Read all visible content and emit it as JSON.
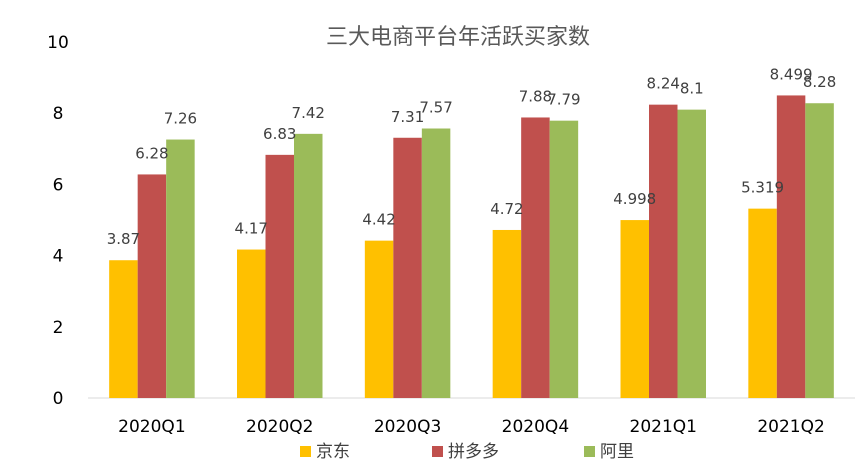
{
  "chart_data": {
    "type": "bar",
    "title": "三大电商平台年活跃买家数",
    "xlabel": "",
    "ylabel": "",
    "ylim": [
      0,
      10
    ],
    "yticks": [
      "0",
      "2",
      "4",
      "6",
      "8",
      "10"
    ],
    "grid": false,
    "legend_position": "bottom",
    "categories": [
      "2020Q1",
      "2020Q2",
      "2020Q3",
      "2020Q4",
      "2021Q1",
      "2021Q2"
    ],
    "series": [
      {
        "name": "京东",
        "color": "#FFC000",
        "values": [
          3.87,
          4.17,
          4.42,
          4.72,
          4.998,
          5.319
        ],
        "labels": [
          "3.87",
          "4.17",
          "4.42",
          "4.72",
          "4.998",
          "5.319"
        ]
      },
      {
        "name": "拼多多",
        "color": "#C0504D",
        "values": [
          6.28,
          6.83,
          7.31,
          7.88,
          8.24,
          8.499
        ],
        "labels": [
          "6.28",
          "6.83",
          "7.31",
          "7.88",
          "8.24",
          "8.499"
        ]
      },
      {
        "name": "阿里",
        "color": "#9BBB59",
        "values": [
          7.26,
          7.42,
          7.57,
          7.79,
          8.1,
          8.28
        ],
        "labels": [
          "7.26",
          "7.42",
          "7.57",
          "7.79",
          "8.1",
          "8.28"
        ]
      }
    ]
  }
}
